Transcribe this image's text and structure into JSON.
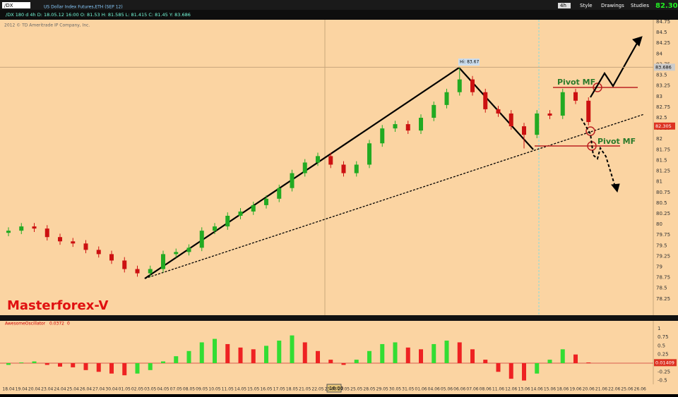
{
  "toolbar": {
    "symbol": "/DX",
    "timeframe": "4h",
    "style": "Style",
    "drawings": "Drawings",
    "studies": "Studies",
    "last": "82.305"
  },
  "header": {
    "info": "/DX 180 d 4h  D: 18.05.12 16:00  O: 81.53  H: 81.585  L: 81.415  C: 81.45  Y: 83.686",
    "instrument": "US Dollar Index Futures,ETH (SEP 12)",
    "copyright": "2012 © TD Ameritrade IP Company, Inc.",
    "cursor_time": "16:00"
  },
  "annotations": {
    "brand": "Masterforex-V",
    "pivot_top": "Pivot MF",
    "pivot_bottom": "Pivot MF",
    "hi": "Hi: 83.67"
  },
  "chart_data": [
    {
      "type": "candlestick",
      "categories": [
        "18.04",
        "19.04",
        "20.04",
        "23.04",
        "24.04",
        "25.04",
        "26.04",
        "27.04",
        "30.04",
        "01.05",
        "02.05",
        "03.05",
        "04.05",
        "07.05",
        "08.05",
        "09.05",
        "10.05",
        "11.05",
        "14.05",
        "15.05",
        "16.05",
        "17.05",
        "18.05",
        "21.05",
        "22.05",
        "23.05",
        "24.05",
        "25.05",
        "28.05",
        "29.05",
        "30.05",
        "31.05",
        "01.06",
        "04.06",
        "05.06",
        "06.06",
        "07.06",
        "08.06",
        "11.06",
        "12.06",
        "13.06",
        "14.06",
        "15.06",
        "18.06",
        "19.06",
        "20.06",
        "21.06",
        "22.06",
        "25.06",
        "26.06"
      ],
      "open": [
        79.8,
        79.85,
        79.95,
        79.9,
        79.7,
        79.6,
        79.55,
        79.4,
        79.3,
        79.15,
        78.95,
        78.85,
        78.95,
        79.3,
        79.35,
        79.45,
        79.85,
        79.95,
        80.2,
        80.3,
        80.45,
        80.6,
        80.85,
        81.2,
        81.45,
        81.6,
        81.4,
        81.2,
        81.4,
        81.9,
        82.25,
        82.35,
        82.2,
        82.5,
        82.8,
        83.1,
        83.4,
        83.1,
        82.7,
        82.6,
        82.3,
        82.1,
        82.6,
        82.55,
        83.1,
        82.9,
        null,
        null,
        null,
        null
      ],
      "high": [
        79.93,
        80.03,
        80.03,
        79.98,
        79.78,
        79.68,
        79.63,
        79.48,
        79.38,
        79.23,
        79.03,
        79.03,
        79.38,
        79.43,
        79.53,
        79.93,
        80.03,
        80.28,
        80.38,
        80.53,
        80.68,
        80.93,
        81.28,
        81.53,
        81.68,
        81.68,
        81.48,
        81.48,
        81.98,
        82.33,
        82.43,
        82.43,
        82.58,
        82.88,
        83.18,
        83.67,
        83.48,
        83.18,
        82.78,
        82.68,
        82.38,
        82.68,
        82.68,
        83.18,
        83.18,
        82.98,
        null,
        null,
        null,
        null
      ],
      "low": [
        79.72,
        79.77,
        79.82,
        79.62,
        79.52,
        79.47,
        79.32,
        79.22,
        79.07,
        78.87,
        78.77,
        78.77,
        78.87,
        79.22,
        79.27,
        79.37,
        79.77,
        79.87,
        80.12,
        80.22,
        80.37,
        80.52,
        80.77,
        81.12,
        81.37,
        81.32,
        81.12,
        81.12,
        81.32,
        81.82,
        82.17,
        82.12,
        82.12,
        82.42,
        82.72,
        83.02,
        83.02,
        82.62,
        82.52,
        82.22,
        81.78,
        82.02,
        82.47,
        82.47,
        82.82,
        82.32,
        null,
        null,
        null,
        null
      ],
      "close": [
        79.85,
        79.95,
        79.9,
        79.7,
        79.6,
        79.55,
        79.4,
        79.3,
        79.15,
        78.95,
        78.85,
        78.95,
        79.3,
        79.35,
        79.45,
        79.85,
        79.95,
        80.2,
        80.3,
        80.45,
        80.6,
        80.85,
        81.2,
        81.45,
        81.6,
        81.4,
        81.2,
        81.4,
        81.9,
        82.25,
        82.35,
        82.2,
        82.5,
        82.8,
        83.1,
        83.4,
        83.1,
        82.7,
        82.6,
        82.3,
        82.1,
        82.6,
        82.55,
        83.1,
        82.9,
        82.4,
        null,
        null,
        null,
        null
      ],
      "up_color": "#22aa22",
      "down_color": "#cc1111",
      "ylim": [
        77.9,
        84.8
      ],
      "yticks": [
        84.75,
        84.5,
        84.25,
        84,
        83.75,
        83.5,
        83.25,
        83,
        82.75,
        82.5,
        82.25,
        82,
        81.75,
        81.5,
        81.25,
        81,
        80.75,
        80.5,
        80.25,
        80,
        79.75,
        79.5,
        79.25,
        79,
        78.75,
        78.5,
        78.25
      ],
      "last_price": 82.305,
      "prev_high": 83.686
    },
    {
      "type": "bar",
      "title": "AwesomeOscillator",
      "value_text": "0.0372",
      "zero_text": "0",
      "values": [
        -0.05,
        0.02,
        0.05,
        -0.05,
        -0.1,
        -0.12,
        -0.2,
        -0.25,
        -0.3,
        -0.35,
        -0.3,
        -0.2,
        0.05,
        0.2,
        0.35,
        0.6,
        0.7,
        0.55,
        0.45,
        0.4,
        0.5,
        0.65,
        0.8,
        0.6,
        0.35,
        0.1,
        -0.05,
        0.1,
        0.35,
        0.55,
        0.6,
        0.45,
        0.4,
        0.55,
        0.65,
        0.6,
        0.4,
        0.1,
        -0.25,
        -0.45,
        -0.5,
        -0.3,
        0.1,
        0.4,
        0.25,
        0.02,
        null,
        null,
        null,
        null
      ],
      "up_color": "#33dd33",
      "down_color": "#ee2222",
      "ylim": [
        -0.61,
        1.22
      ],
      "yticks": [
        1,
        0.75,
        0.5,
        0.25,
        0,
        -0.25,
        -0.5
      ],
      "last_value": 0.01409,
      "last_label": "0.01409"
    }
  ]
}
